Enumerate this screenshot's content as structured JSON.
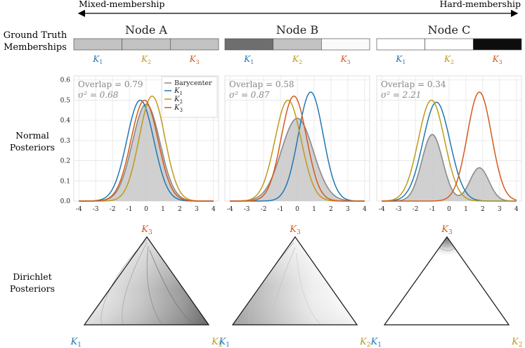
{
  "header": {
    "left": "Mixed-membership",
    "right": "Hard-membership"
  },
  "row_labels": {
    "ground_truth_line1": "Ground Truth",
    "ground_truth_line2": "Memberships",
    "normal_line1": "Normal",
    "normal_line2": "Posteriors",
    "dirichlet_line1": "Dirichlet",
    "dirichlet_line2": "Posteriors"
  },
  "colors": {
    "K1": "#1f77b4",
    "K2": "#bf9a1a",
    "K3": "#d45a1c",
    "barycenter": "#8a8a8a",
    "barycenter_fill": "#c8c8c8",
    "grid": "#e6e6e6"
  },
  "component_labels": [
    "K1",
    "K2",
    "K3"
  ],
  "nodes": [
    {
      "title": "Node A",
      "membership_shades": [
        0.25,
        0.25,
        0.25
      ],
      "overlap_text": "Overlap = 0.79",
      "sigma_text": "σ² = 0.68",
      "show_yaxis": true,
      "show_legend": true,
      "simplex": "diffuse-k2"
    },
    {
      "title": "Node B",
      "membership_shades": [
        0.6,
        0.25,
        0.02
      ],
      "overlap_text": "Overlap = 0.58",
      "sigma_text": "σ² = 0.87",
      "show_yaxis": false,
      "show_legend": false,
      "simplex": "moderate"
    },
    {
      "title": "Node C",
      "membership_shades": [
        0.0,
        0.0,
        1.0
      ],
      "overlap_text": "Overlap = 0.34",
      "sigma_text": "σ² = 2.21",
      "show_yaxis": false,
      "show_legend": false,
      "simplex": "peak-k3"
    }
  ],
  "legend": {
    "barycenter": "Barycenter",
    "k1": "K",
    "k2": "K",
    "k3": "K"
  },
  "chart_data": [
    {
      "type": "line",
      "title": "Node A",
      "xlim": [
        -4.3,
        4.3
      ],
      "ylim": [
        0,
        0.62
      ],
      "x_ticks": [
        -4,
        -3,
        -2,
        -1,
        0,
        1,
        2,
        3,
        4
      ],
      "y_ticks": [
        0.0,
        0.1,
        0.2,
        0.3,
        0.4,
        0.5,
        0.6
      ],
      "series": [
        {
          "name": "Barycenter",
          "components": [
            {
              "mu": 0.0,
              "sd": 0.82,
              "w": 1.0
            }
          ],
          "peak": 0.48
        },
        {
          "name": "K1",
          "components": [
            {
              "mu": -0.35,
              "sd": 0.8,
              "w": 1.0
            }
          ],
          "peak": 0.5
        },
        {
          "name": "K2",
          "components": [
            {
              "mu": 0.35,
              "sd": 0.76,
              "w": 1.0
            }
          ],
          "peak": 0.52
        },
        {
          "name": "K3",
          "components": [
            {
              "mu": -0.1,
              "sd": 0.8,
              "w": 1.0
            }
          ],
          "peak": 0.5
        }
      ]
    },
    {
      "type": "line",
      "title": "Node B",
      "xlim": [
        -4.3,
        4.3
      ],
      "ylim": [
        0,
        0.62
      ],
      "x_ticks": [
        -4,
        -3,
        -2,
        -1,
        0,
        1,
        2,
        3,
        4
      ],
      "y_ticks": [
        0.0,
        0.1,
        0.2,
        0.3,
        0.4,
        0.5,
        0.6
      ],
      "series": [
        {
          "name": "Barycenter",
          "components": [
            {
              "mu": 0.0,
              "sd": 0.95,
              "w": 1.0
            }
          ],
          "peak": 0.41
        },
        {
          "name": "K1",
          "components": [
            {
              "mu": 0.8,
              "sd": 0.74,
              "w": 1.0
            }
          ],
          "peak": 0.54
        },
        {
          "name": "K2",
          "components": [
            {
              "mu": -0.55,
              "sd": 0.78,
              "w": 1.0
            }
          ],
          "peak": 0.5
        },
        {
          "name": "K3",
          "components": [
            {
              "mu": -0.2,
              "sd": 0.75,
              "w": 1.0
            }
          ],
          "peak": 0.52
        }
      ]
    },
    {
      "type": "line",
      "title": "Node C",
      "xlim": [
        -4.3,
        4.3
      ],
      "ylim": [
        0,
        0.62
      ],
      "x_ticks": [
        -4,
        -3,
        -2,
        -1,
        0,
        1,
        2,
        3,
        4
      ],
      "y_ticks": [
        0.0,
        0.1,
        0.2,
        0.3,
        0.4,
        0.5,
        0.6
      ],
      "series": [
        {
          "name": "Barycenter",
          "components": [
            {
              "mu": -1.0,
              "sd": 0.62,
              "w": 0.66
            },
            {
              "mu": 1.8,
              "sd": 0.56,
              "w": 0.33
            }
          ],
          "peak": 0.33
        },
        {
          "name": "K1",
          "components": [
            {
              "mu": -0.75,
              "sd": 0.8,
              "w": 1.0
            }
          ],
          "peak": 0.49
        },
        {
          "name": "K2",
          "components": [
            {
              "mu": -1.05,
              "sd": 0.78,
              "w": 1.0
            }
          ],
          "peak": 0.5
        },
        {
          "name": "K3",
          "components": [
            {
              "mu": 1.8,
              "sd": 0.72,
              "w": 1.0
            }
          ],
          "peak": 0.54
        }
      ]
    }
  ]
}
